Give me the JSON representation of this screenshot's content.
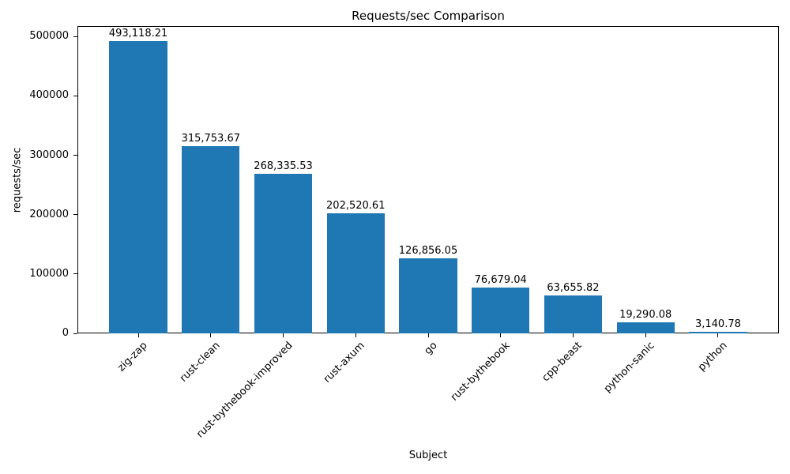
{
  "chart_data": {
    "type": "bar",
    "title": "Requests/sec Comparison",
    "xlabel": "Subject",
    "ylabel": "requests/sec",
    "categories": [
      "zig-zap",
      "rust-clean",
      "rust-bythebook-improved",
      "rust-axum",
      "go",
      "rust-bythebook",
      "cpp-beast",
      "python-sanic",
      "python"
    ],
    "values": [
      493118.21,
      315753.67,
      268335.53,
      202520.61,
      126856.05,
      76679.04,
      63655.82,
      19290.08,
      3140.78
    ],
    "bar_value_labels": [
      "493,118.21",
      "315,753.67",
      "268,335.53",
      "202,520.61",
      "126,856.05",
      "76,679.04",
      "63,655.82",
      "19,290.08",
      "3,140.78"
    ],
    "bar_color": "#1f77b4",
    "axis_color": "#000000",
    "ylim": [
      0,
      517774
    ],
    "yticks": [
      0,
      100000,
      200000,
      300000,
      400000,
      500000
    ],
    "ytick_labels": [
      "0",
      "100000",
      "200000",
      "300000",
      "400000",
      "500000"
    ],
    "xtick_rotation_deg": 45,
    "grid": false,
    "legend": null,
    "bar_width_fraction": 0.8,
    "axes_margin_fraction": 0.05
  }
}
